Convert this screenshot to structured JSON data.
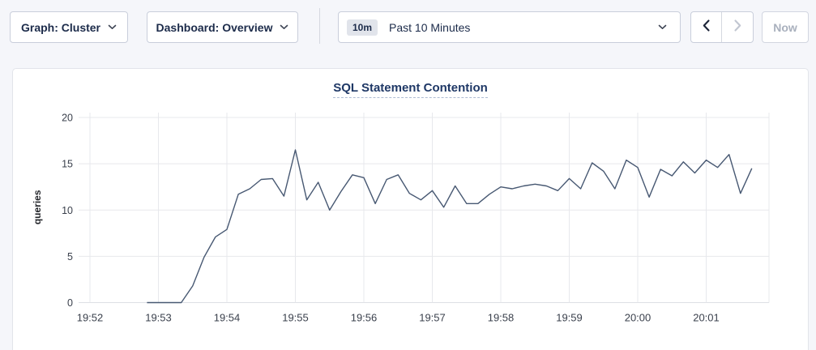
{
  "toolbar": {
    "graph_dropdown_label": "Graph: Cluster",
    "dashboard_dropdown_label": "Dashboard: Overview",
    "time_range": {
      "badge": "10m",
      "label": "Past 10 Minutes"
    },
    "prev_button": "previous time window",
    "next_button": "next time window",
    "now_button_label": "Now"
  },
  "chart": {
    "title": "SQL Statement Contention"
  },
  "colors": {
    "page_bg": "#f5f6fa",
    "card_bg": "#ffffff",
    "control_border": "#c9cedb",
    "control_text": "#1c2b4a",
    "disabled_text": "#a9b0bd",
    "title_navy": "#1f3866",
    "grid": "#e7e8ec",
    "tick_text": "#3a404c",
    "line": "#475872"
  },
  "chart_data": {
    "type": "line",
    "title": "SQL Statement Contention",
    "xlabel": "",
    "ylabel": "queries",
    "ylim": [
      0,
      20
    ],
    "yticks": [
      0,
      5,
      10,
      15,
      20
    ],
    "x_tick_labels": [
      "19:52",
      "19:53",
      "19:54",
      "19:55",
      "19:56",
      "19:57",
      "19:58",
      "19:59",
      "20:00",
      "20:01"
    ],
    "grid": true,
    "legend": "none",
    "line_color": "#475872",
    "series": [
      {
        "name": "queries",
        "points": [
          [
            "19:52:50",
            0
          ],
          [
            "19:53:00",
            0
          ],
          [
            "19:53:10",
            0
          ],
          [
            "19:53:20",
            0
          ],
          [
            "19:53:30",
            1.8
          ],
          [
            "19:53:40",
            4.9
          ],
          [
            "19:53:50",
            7.1
          ],
          [
            "19:54:00",
            7.9
          ],
          [
            "19:54:10",
            11.7
          ],
          [
            "19:54:20",
            12.3
          ],
          [
            "19:54:30",
            13.3
          ],
          [
            "19:54:40",
            13.4
          ],
          [
            "19:54:50",
            11.5
          ],
          [
            "19:55:00",
            16.5
          ],
          [
            "19:55:10",
            11.1
          ],
          [
            "19:55:20",
            13.0
          ],
          [
            "19:55:30",
            10.0
          ],
          [
            "19:55:40",
            12.0
          ],
          [
            "19:55:50",
            13.8
          ],
          [
            "19:56:00",
            13.5
          ],
          [
            "19:56:10",
            10.7
          ],
          [
            "19:56:20",
            13.3
          ],
          [
            "19:56:30",
            13.8
          ],
          [
            "19:56:40",
            11.8
          ],
          [
            "19:56:50",
            11.1
          ],
          [
            "19:57:00",
            12.1
          ],
          [
            "19:57:10",
            10.3
          ],
          [
            "19:57:20",
            12.6
          ],
          [
            "19:57:30",
            10.7
          ],
          [
            "19:57:40",
            10.7
          ],
          [
            "19:57:50",
            11.7
          ],
          [
            "19:58:00",
            12.5
          ],
          [
            "19:58:10",
            12.3
          ],
          [
            "19:58:20",
            12.6
          ],
          [
            "19:58:30",
            12.8
          ],
          [
            "19:58:40",
            12.6
          ],
          [
            "19:58:50",
            12.1
          ],
          [
            "19:59:00",
            13.4
          ],
          [
            "19:59:10",
            12.3
          ],
          [
            "19:59:20",
            15.1
          ],
          [
            "19:59:30",
            14.2
          ],
          [
            "19:59:40",
            12.3
          ],
          [
            "19:59:50",
            15.4
          ],
          [
            "20:00:00",
            14.6
          ],
          [
            "20:00:10",
            11.4
          ],
          [
            "20:00:20",
            14.4
          ],
          [
            "20:00:30",
            13.7
          ],
          [
            "20:00:40",
            15.2
          ],
          [
            "20:00:50",
            14.0
          ],
          [
            "20:01:00",
            15.4
          ],
          [
            "20:01:10",
            14.6
          ],
          [
            "20:01:20",
            16.0
          ],
          [
            "20:01:30",
            11.8
          ],
          [
            "20:01:40",
            14.5
          ]
        ]
      }
    ]
  }
}
